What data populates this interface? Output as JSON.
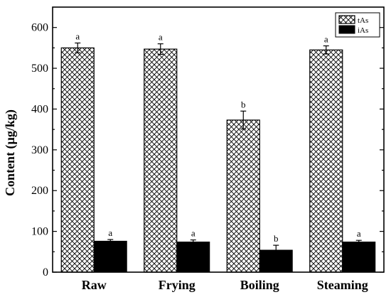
{
  "chart_data": {
    "type": "bar",
    "title": "",
    "xlabel": "",
    "ylabel": "Content (µg/kg)",
    "ylim": [
      0,
      650
    ],
    "yticks": [
      0,
      100,
      200,
      300,
      400,
      500,
      600
    ],
    "categories": [
      "Raw",
      "Frying",
      "Boiling",
      "Steaming"
    ],
    "legend_position": "top-right",
    "grid": false,
    "series": [
      {
        "name": "tAs",
        "pattern": "crosshatch",
        "color": "#ffffff",
        "values": [
          550,
          547,
          373,
          545
        ],
        "errors": [
          12,
          13,
          22,
          10
        ],
        "labels": [
          "a",
          "a",
          "b",
          "a"
        ]
      },
      {
        "name": "iAs",
        "pattern": "solid",
        "color": "#000000",
        "values": [
          76,
          74,
          54,
          74
        ],
        "errors": [
          4,
          5,
          12,
          4
        ],
        "labels": [
          "a",
          "a",
          "b",
          "a"
        ]
      }
    ]
  }
}
